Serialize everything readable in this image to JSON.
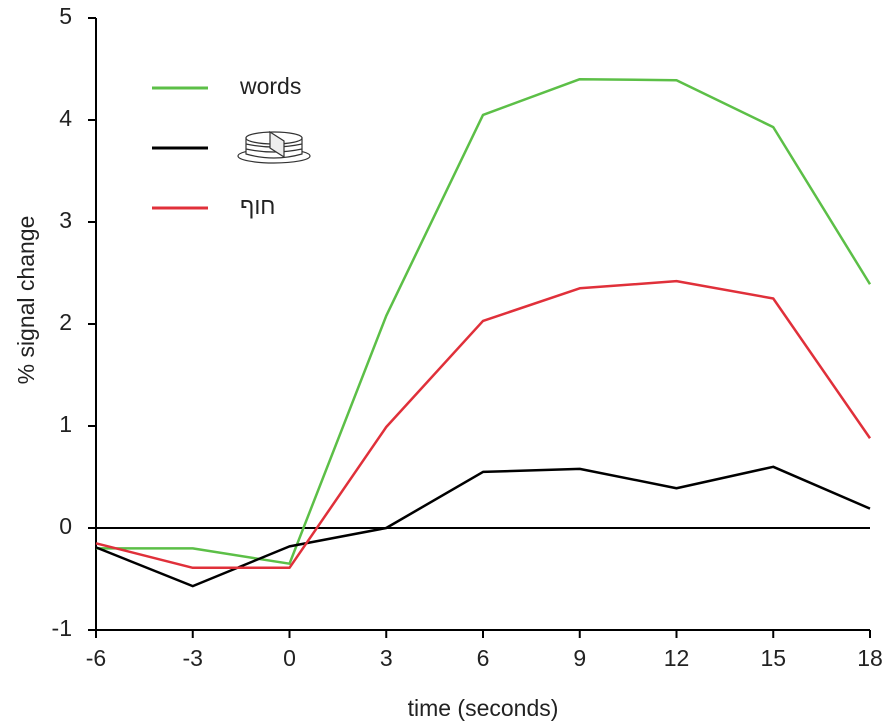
{
  "chart_data": {
    "type": "line",
    "x_label": "time (seconds)",
    "y_label": "% signal change",
    "x": [
      -6,
      -3,
      0,
      3,
      6,
      9,
      12,
      15,
      18
    ],
    "xlim": [
      -6,
      18
    ],
    "xticks": [
      -6,
      -3,
      0,
      3,
      6,
      9,
      12,
      15,
      18
    ],
    "ylim": [
      -1,
      5
    ],
    "yticks": [
      -1,
      0,
      1,
      2,
      3,
      4,
      5
    ],
    "series": [
      {
        "name": "words",
        "color": "#5cbf47",
        "values": [
          -0.2,
          -0.2,
          -0.35,
          2.08,
          4.05,
          4.4,
          4.39,
          3.93,
          2.39
        ]
      },
      {
        "color": "#000000",
        "values": [
          -0.19,
          -0.57,
          -0.18,
          0.0,
          0.55,
          0.58,
          0.39,
          0.6,
          0.19
        ]
      },
      {
        "name": "חוף",
        "color": "#e0303a",
        "values": [
          -0.15,
          -0.39,
          -0.39,
          0.99,
          2.03,
          2.35,
          2.42,
          2.25,
          0.88
        ]
      }
    ]
  }
}
